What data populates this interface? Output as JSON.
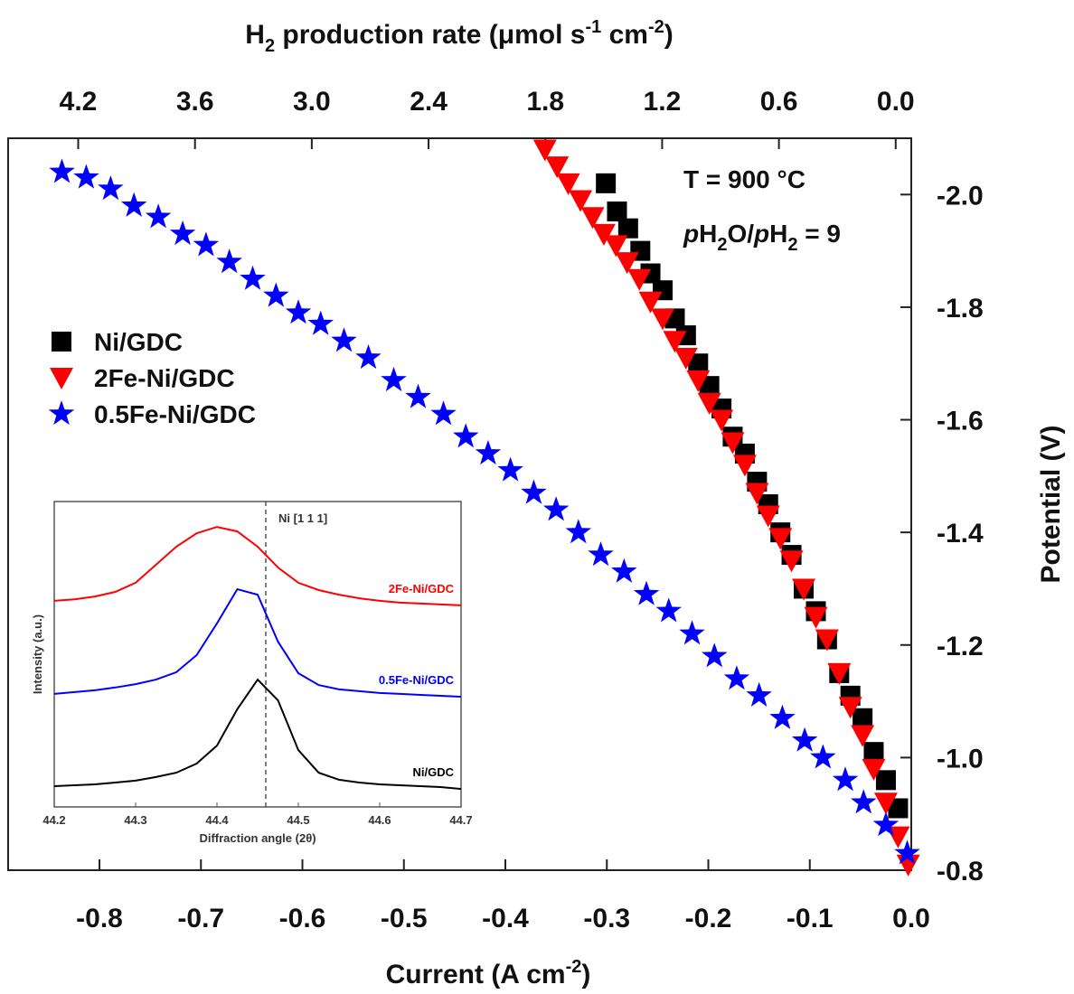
{
  "chart_data": [
    {
      "type": "scatter",
      "x_label": [
        {
          "text": "Current (A cm"
        },
        {
          "text": "-2",
          "sup": true
        },
        {
          "text": ")"
        }
      ],
      "x2_label": [
        {
          "text": "H"
        },
        {
          "text": "2",
          "sub": true
        },
        {
          "text": " production rate (μmol s"
        },
        {
          "text": "-1",
          "sup": true
        },
        {
          "text": " cm"
        },
        {
          "text": "-2",
          "sup": true
        },
        {
          "text": ")"
        }
      ],
      "y_label": [
        {
          "text": "Potential (V)"
        }
      ],
      "annotations": [
        [
          {
            "text": "T = 900 °C"
          }
        ],
        [
          {
            "text": "p",
            "italic": true
          },
          {
            "text": "H"
          },
          {
            "text": "2",
            "sub": true
          },
          {
            "text": "O/"
          },
          {
            "text": "p",
            "italic": true
          },
          {
            "text": "H"
          },
          {
            "text": "2",
            "sub": true
          },
          {
            "text": " = 9"
          }
        ]
      ],
      "xlim": [
        -0.89,
        0
      ],
      "xticks": [
        -0.8,
        -0.7,
        -0.6,
        -0.5,
        -0.4,
        -0.3,
        -0.2,
        -0.1,
        {
          "value": 0,
          "label": "0.0"
        }
      ],
      "x2lim": [
        4.56,
        -0.08
      ],
      "x2ticks": [
        4.2,
        3.6,
        {
          "value": 3,
          "label": "3.0"
        },
        2.4,
        1.8,
        1.2,
        0.6,
        {
          "value": 0,
          "label": "0.0"
        }
      ],
      "ylim": [
        -2.1,
        -0.8
      ],
      "y_inverted": true,
      "yticks": [
        {
          "value": -2,
          "label": "-2.0"
        },
        -1.8,
        -1.6,
        -1.4,
        -1.2,
        {
          "value": -1,
          "label": "-1.0"
        },
        -0.8
      ],
      "legend": "upper left",
      "series": [
        {
          "name": "Ni/GDC",
          "color": "#000000",
          "marker": "square",
          "x": [
            -0.301,
            -0.29,
            -0.279,
            -0.267,
            -0.257,
            -0.245,
            -0.233,
            -0.222,
            -0.21,
            -0.199,
            -0.187,
            -0.176,
            -0.164,
            -0.152,
            -0.141,
            -0.129,
            -0.118,
            -0.106,
            -0.094,
            -0.083,
            -0.071,
            -0.06,
            -0.048,
            -0.037,
            -0.025,
            -0.013
          ],
          "values": [
            -2.02,
            -1.97,
            -1.94,
            -1.9,
            -1.86,
            -1.83,
            -1.78,
            -1.75,
            -1.7,
            -1.66,
            -1.62,
            -1.57,
            -1.54,
            -1.49,
            -1.45,
            -1.4,
            -1.36,
            -1.3,
            -1.26,
            -1.21,
            -1.15,
            -1.11,
            -1.07,
            -1.01,
            -0.96,
            -0.91
          ]
        },
        {
          "name": "2Fe-Ni/GDC",
          "color": "#ff0000",
          "marker": "triangle_down",
          "x": [
            -0.361,
            -0.349,
            -0.338,
            -0.326,
            -0.314,
            -0.303,
            -0.291,
            -0.28,
            -0.268,
            -0.257,
            -0.245,
            -0.233,
            -0.222,
            -0.21,
            -0.199,
            -0.187,
            -0.176,
            -0.164,
            -0.152,
            -0.141,
            -0.129,
            -0.118,
            -0.106,
            -0.094,
            -0.083,
            -0.071,
            -0.06,
            -0.048,
            -0.037,
            -0.025,
            -0.013,
            -0.003
          ],
          "values": [
            -2.08,
            -2.05,
            -2.02,
            -1.99,
            -1.96,
            -1.93,
            -1.91,
            -1.88,
            -1.85,
            -1.81,
            -1.78,
            -1.74,
            -1.71,
            -1.67,
            -1.63,
            -1.6,
            -1.56,
            -1.52,
            -1.47,
            -1.43,
            -1.39,
            -1.35,
            -1.3,
            -1.25,
            -1.21,
            -1.15,
            -1.09,
            -1.04,
            -0.98,
            -0.92,
            -0.86,
            -0.81
          ]
        },
        {
          "name": "0.5Fe-Ni/GDC",
          "color": "#0000ff",
          "marker": "star",
          "x": [
            -0.837,
            -0.813,
            -0.789,
            -0.766,
            -0.742,
            -0.718,
            -0.695,
            -0.672,
            -0.649,
            -0.626,
            -0.604,
            -0.582,
            -0.559,
            -0.535,
            -0.51,
            -0.486,
            -0.461,
            -0.439,
            -0.417,
            -0.395,
            -0.372,
            -0.35,
            -0.328,
            -0.306,
            -0.283,
            -0.261,
            -0.239,
            -0.216,
            -0.194,
            -0.172,
            -0.15,
            -0.127,
            -0.105,
            -0.087,
            -0.065,
            -0.047,
            -0.025,
            -0.004
          ],
          "values": [
            -2.04,
            -2.03,
            -2.01,
            -1.98,
            -1.96,
            -1.93,
            -1.91,
            -1.88,
            -1.85,
            -1.82,
            -1.79,
            -1.77,
            -1.74,
            -1.71,
            -1.67,
            -1.64,
            -1.61,
            -1.57,
            -1.54,
            -1.51,
            -1.47,
            -1.44,
            -1.4,
            -1.36,
            -1.33,
            -1.29,
            -1.26,
            -1.22,
            -1.18,
            -1.14,
            -1.11,
            -1.07,
            -1.03,
            -1.0,
            -0.96,
            -0.92,
            -0.88,
            -0.83
          ]
        }
      ]
    },
    {
      "type": "line",
      "x_label": "Diffraction angle (2θ)",
      "y_label": "Intensity (a.u.)",
      "reference_x": 44.46,
      "reference_label": "Ni [1 1 1]",
      "xlim": [
        44.2,
        44.7
      ],
      "xticks": [
        44.2,
        44.3,
        44.4,
        44.5,
        44.6,
        44.7
      ],
      "ylim": [
        0,
        100
      ],
      "x": [
        44.2,
        44.225,
        44.25,
        44.275,
        44.3,
        44.325,
        44.35,
        44.375,
        44.4,
        44.425,
        44.45,
        44.475,
        44.5,
        44.525,
        44.55,
        44.575,
        44.6,
        44.625,
        44.65,
        44.675,
        44.7
      ],
      "series": [
        {
          "name": "2Fe-Ni/GDC",
          "color": "#ff0000",
          "values": [
            67.5,
            68.0,
            68.9,
            70.4,
            73.4,
            79.3,
            85.2,
            89.6,
            91.7,
            90.2,
            85.2,
            78.4,
            73.4,
            71.0,
            69.5,
            68.3,
            67.5,
            66.9,
            66.6,
            66.3,
            66.0
          ]
        },
        {
          "name": "0.5Fe-Ni/GDC",
          "color": "#0000ff",
          "values": [
            37.0,
            37.6,
            38.2,
            39.1,
            40.2,
            41.7,
            44.1,
            49.7,
            60.1,
            71.3,
            69.5,
            54.1,
            43.8,
            39.9,
            38.5,
            37.9,
            37.3,
            37.0,
            36.7,
            36.4,
            36.1
          ]
        },
        {
          "name": "Ni/GDC",
          "color": "#000000",
          "values": [
            6.8,
            7.1,
            7.4,
            8.0,
            8.6,
            9.8,
            11.2,
            14.2,
            20.1,
            32.0,
            41.7,
            34.9,
            18.6,
            11.2,
            8.9,
            8.0,
            7.4,
            7.1,
            6.8,
            6.5,
            5.9
          ]
        }
      ]
    }
  ]
}
